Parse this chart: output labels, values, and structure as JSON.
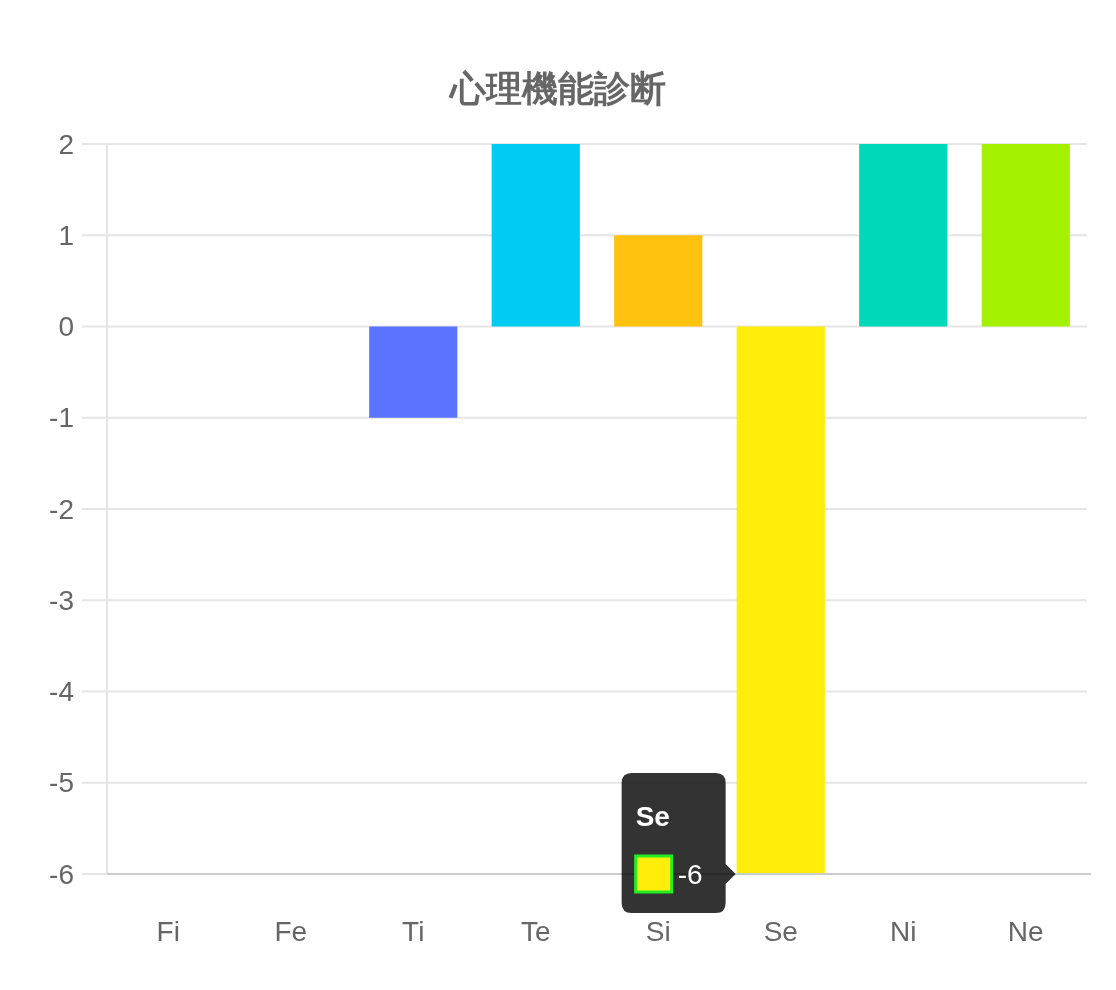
{
  "chart_data": {
    "type": "bar",
    "title": "心理機能診断",
    "categories": [
      "Fi",
      "Fe",
      "Ti",
      "Te",
      "Si",
      "Se",
      "Ni",
      "Ne"
    ],
    "values": [
      0,
      0,
      -1,
      2,
      1,
      -6,
      2,
      2
    ],
    "colors": [
      null,
      null,
      "#5b74ff",
      "#00cbf1",
      "#ffc30f",
      "#ffee0a",
      "#00d9b8",
      "#a3f100"
    ],
    "ylim": [
      -6,
      2
    ],
    "yticks": [
      2,
      1,
      0,
      -1,
      -2,
      -3,
      -4,
      -5,
      -6
    ],
    "grid": "y",
    "annotations": [
      "Se",
      {
        "text": "-6",
        "x": "Se",
        "y": -6
      }
    ]
  }
}
